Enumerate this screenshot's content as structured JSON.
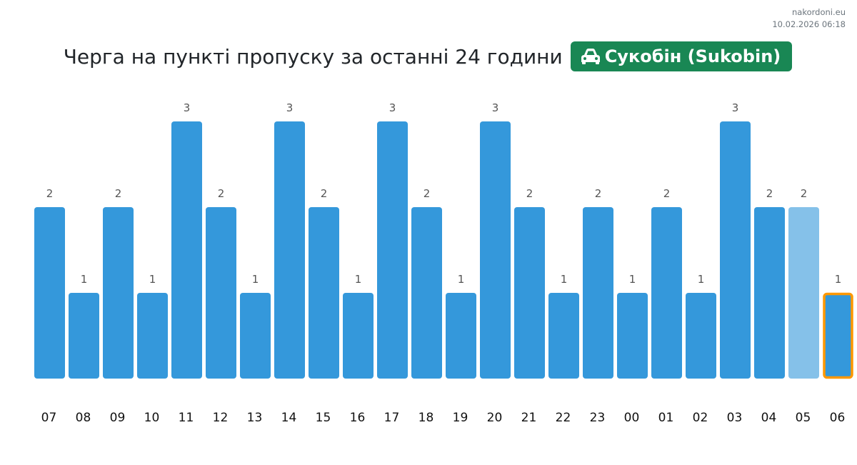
{
  "meta": {
    "site": "nakordoni.eu",
    "timestamp": "10.02.2026 06:18"
  },
  "header": {
    "title": "Черга на пункті пропуску за останні 24 години",
    "checkpoint": "Сукобін (Sukobin)",
    "icon": "car-icon"
  },
  "colors": {
    "bar": "#3498db",
    "bar_previous": "#85c1e9",
    "current_outline": "#ff9800",
    "badge": "#198754"
  },
  "chart_data": {
    "type": "bar",
    "title": "Черга на пункті пропуску за останні 24 години",
    "xlabel": "",
    "ylabel": "",
    "categories": [
      "07",
      "08",
      "09",
      "10",
      "11",
      "12",
      "13",
      "14",
      "15",
      "16",
      "17",
      "18",
      "19",
      "20",
      "21",
      "22",
      "23",
      "00",
      "01",
      "02",
      "03",
      "04",
      "05",
      "06"
    ],
    "values": [
      2,
      1,
      2,
      1,
      3,
      2,
      1,
      3,
      2,
      1,
      3,
      2,
      1,
      3,
      2,
      1,
      2,
      1,
      2,
      1,
      3,
      2,
      2,
      1
    ],
    "ylim": [
      0,
      3
    ],
    "grid": false,
    "highlight_light_index": 22,
    "highlight_current_index": 23
  }
}
